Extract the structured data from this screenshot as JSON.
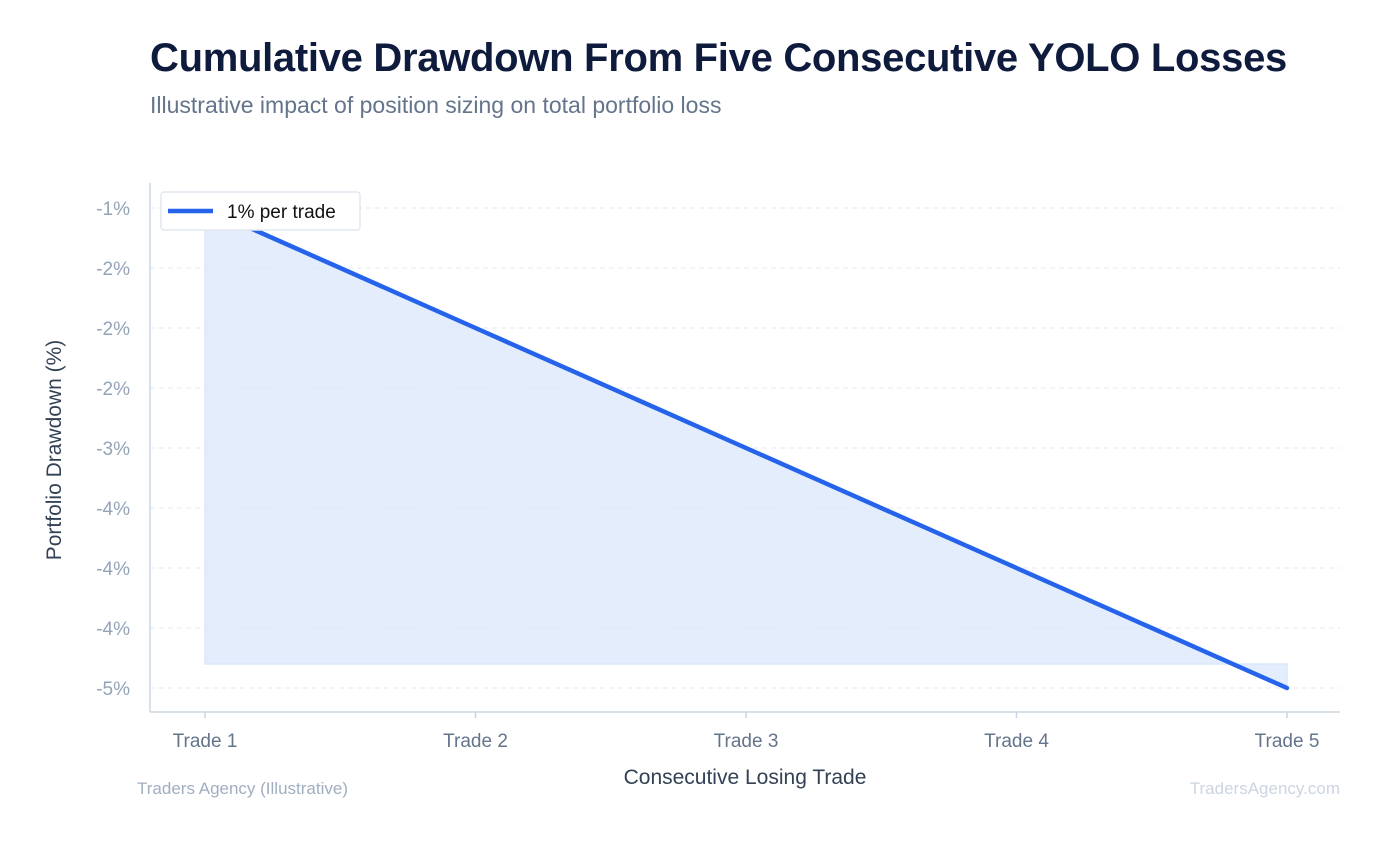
{
  "header": {
    "title": "Cumulative Drawdown From Five Consecutive YOLO Losses",
    "subtitle": "Illustrative impact of position sizing on total portfolio loss"
  },
  "footer": {
    "source": "Traders Agency (Illustrative)",
    "watermark": "TradersAgency.com"
  },
  "chart_data": {
    "type": "area",
    "title": "Cumulative Drawdown From Five Consecutive YOLO Losses",
    "subtitle": "Illustrative impact of position sizing on total portfolio loss",
    "xlabel": "Consecutive Losing Trade",
    "ylabel": "Portfolio Drawdown (%)",
    "categories": [
      "Trade 1",
      "Trade 2",
      "Trade 3",
      "Trade 4",
      "Trade 5"
    ],
    "series": [
      {
        "name": "1% per trade",
        "values": [
          -1,
          -2,
          -3,
          -4,
          -5
        ],
        "color": "#2563eb",
        "fill_color": "#dbe7fb"
      }
    ],
    "y_ticks": [
      -1,
      -1.5,
      -2,
      -2.5,
      -3,
      -3.5,
      -4,
      -4.5,
      -5
    ],
    "y_tick_labels": [
      "-1%",
      "-2%",
      "-2%",
      "-2%",
      "-3%",
      "-4%",
      "-4%",
      "-4%",
      "-5%"
    ],
    "ylim": [
      -5.2,
      -0.9
    ],
    "fill_baseline": -4.8,
    "grid": true,
    "grid_style": "dashed horizontal",
    "legend_position": "top-left"
  }
}
